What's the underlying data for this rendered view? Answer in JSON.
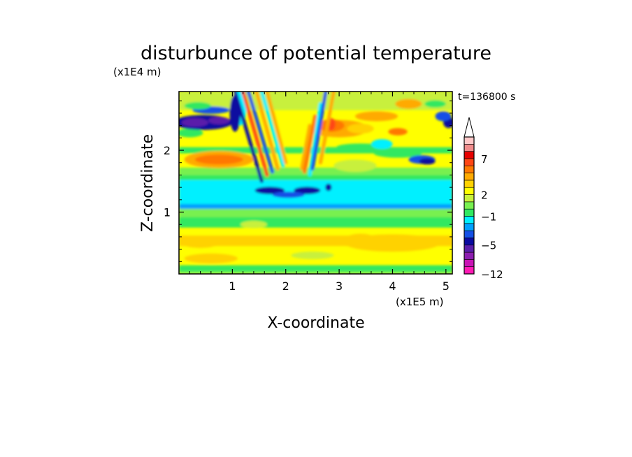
{
  "chart_data": {
    "type": "heatmap",
    "title": "disturbunce of potential temperature",
    "time_label": "t=136800 s",
    "xlabel": "X-coordinate",
    "ylabel": "Z-coordinate",
    "x_unit": "(x1E5 m)",
    "y_unit": "(x1E4 m)",
    "xlim": [
      0,
      5.12
    ],
    "ylim": [
      0,
      2.95
    ],
    "x_ticks": [
      1,
      2,
      3,
      4,
      5
    ],
    "y_ticks": [
      1,
      2
    ],
    "x_tick_labels": [
      "1",
      "2",
      "3",
      "4",
      "5"
    ],
    "y_tick_labels": [
      "1",
      "2"
    ],
    "colorbar": {
      "levels": [
        -12,
        -10,
        -8,
        -6,
        -5,
        -4,
        -3,
        -2,
        -1,
        0,
        1,
        2,
        3,
        4,
        5,
        6,
        7,
        8,
        9,
        10
      ],
      "tick_values": [
        7,
        2,
        -1,
        -5,
        -12
      ],
      "tick_labels": [
        "7",
        "2",
        "−1",
        "−5",
        "−12"
      ],
      "colors": [
        "#ff1ab4",
        "#c814b4",
        "#8c1eaf",
        "#5a1eaa",
        "#0a0aa0",
        "#1450e6",
        "#00a0ff",
        "#00f0ff",
        "#30e860",
        "#78f050",
        "#c8f03c",
        "#ffff00",
        "#ffd200",
        "#ffaa00",
        "#ff7800",
        "#ff4614",
        "#e60000",
        "#f08c8c",
        "#ffc8c8"
      ],
      "extend": "max"
    },
    "grid": false
  }
}
